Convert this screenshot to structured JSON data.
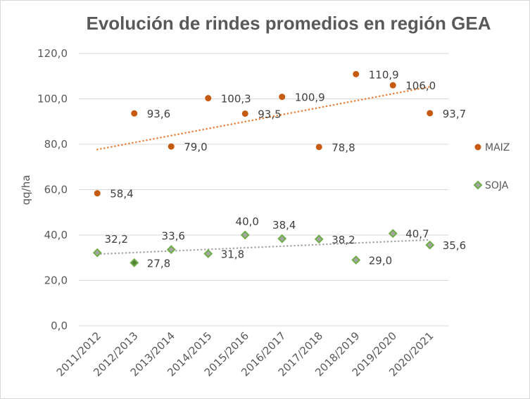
{
  "chart_data": {
    "type": "scatter",
    "title": "Evolución de rindes promedios en región GEA",
    "xlabel": "",
    "ylabel": "qq/ha",
    "ylim": [
      0,
      120
    ],
    "yticks": [
      "0,0",
      "20,0",
      "40,0",
      "60,0",
      "80,0",
      "100,0",
      "120,0"
    ],
    "ytick_values": [
      0,
      20,
      40,
      60,
      80,
      100,
      120
    ],
    "grid": true,
    "legend_position": "right",
    "categories": [
      "2011/2012",
      "2012/2013",
      "2013/2014",
      "2014/2015",
      "2015/2016",
      "2016/2017",
      "2017/2018",
      "2018/2019",
      "2019/2020",
      "2020/2021"
    ],
    "series": [
      {
        "name": "MAIZ",
        "marker": "circle",
        "color": "#c55a11",
        "trend_color": "#ed7d31",
        "trendline": "linear",
        "values": [
          58.4,
          93.6,
          79.0,
          100.3,
          93.5,
          100.9,
          78.8,
          110.9,
          106.0,
          93.7
        ],
        "labels": [
          "58,4",
          "93,6",
          "79,0",
          "100,3",
          "93,5",
          "100,9",
          "78,8",
          "110,9",
          "106,0",
          "93,7"
        ]
      },
      {
        "name": "SOJA",
        "marker": "diamond",
        "color": "#70ad47",
        "fill": "#a5a5a5",
        "highlight_fill": "#548235",
        "trend_color": "#a5a5a5",
        "trendline": "linear",
        "values": [
          32.2,
          27.8,
          33.6,
          31.8,
          40.0,
          38.4,
          38.2,
          29.0,
          40.7,
          35.6
        ],
        "labels": [
          "32,2",
          "27,8",
          "33,6",
          "31,8",
          "40,0",
          "38,4",
          "38,2",
          "29,0",
          "40,7",
          "35,6"
        ],
        "label_positions": [
          "above",
          "right",
          "above",
          "right",
          "above",
          "above",
          "right",
          "right",
          "right",
          "right"
        ]
      }
    ]
  }
}
